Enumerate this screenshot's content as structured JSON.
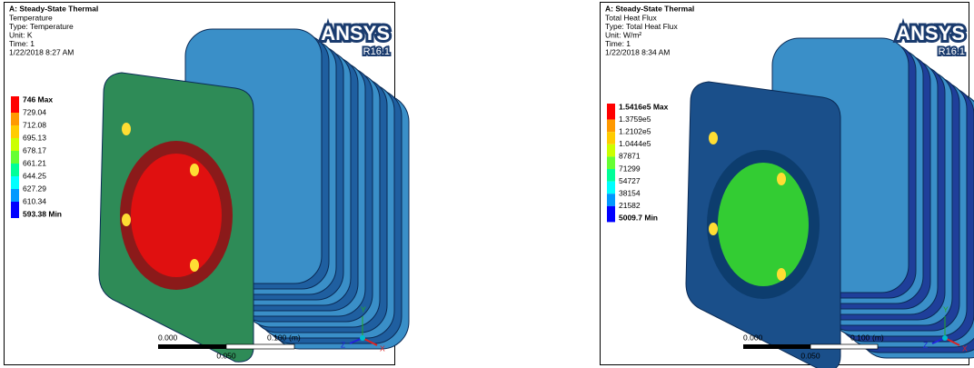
{
  "panels": [
    {
      "title": "A: Steady-State Thermal",
      "info": [
        "Temperature",
        "Type: Temperature",
        "Unit: K",
        "Time: 1",
        "1/22/2018 8:27 AM"
      ],
      "legend": [
        "746 Max",
        "729.04",
        "712.08",
        "695.13",
        "678.17",
        "661.21",
        "644.25",
        "627.29",
        "610.34",
        "593.38 Min"
      ],
      "logo": "ANSYS",
      "version": "R16.1",
      "scale": {
        "left": "0.000",
        "right": "0.100",
        "unit": "(m)",
        "mid": "0.050"
      },
      "axes": {
        "y": "Y",
        "z": "Z",
        "x": "X"
      }
    },
    {
      "title": "A: Steady-State Thermal",
      "info": [
        "Total Heat Flux",
        "Type: Total Heat Flux",
        "Unit: W/m²",
        "Time: 1",
        "1/22/2018 8:34 AM"
      ],
      "legend": [
        "1.5416e5 Max",
        "1.3759e5",
        "1.2102e5",
        "1.0444e5",
        "87871",
        "71299",
        "54727",
        "38154",
        "21582",
        "5009.7 Min"
      ],
      "logo": "ANSYS",
      "version": "R16.1",
      "scale": {
        "left": "0.000",
        "right": "0.100",
        "unit": "(m)",
        "mid": "0.050"
      },
      "axes": {
        "y": "Y",
        "z": "Z",
        "x": "X"
      }
    }
  ]
}
